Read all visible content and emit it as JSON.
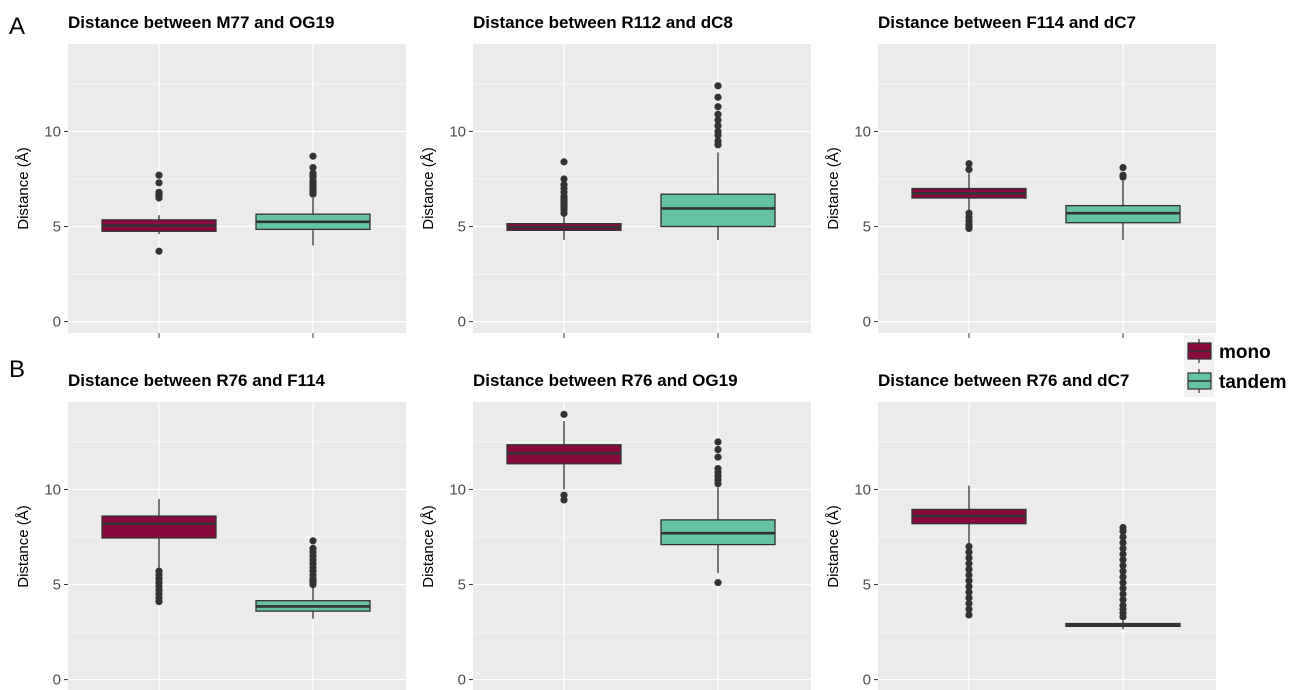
{
  "figure": {
    "row_labels": [
      "A",
      "B"
    ],
    "legend": {
      "entries": [
        {
          "label": "mono",
          "color": "#8B0A3E"
        },
        {
          "label": "tandem",
          "color": "#66C2A5"
        }
      ]
    }
  },
  "colors": {
    "panel_bg": "#EBEBEB",
    "gridline": "#FFFFFF",
    "box_line": "#333333",
    "tick_text": "#4D4D4D",
    "title_text": "#000000"
  },
  "chart_data": [
    {
      "type": "boxplot",
      "title": "Distance between M77 and OG19",
      "xlabel": "",
      "ylabel": "Distance (Å)",
      "ylim": [
        -0.6,
        14.6
      ],
      "yticks": [
        0,
        5,
        10
      ],
      "grid": true,
      "groups": [
        {
          "name": "mono",
          "min": 4.6,
          "q1": 4.75,
          "median": 5.05,
          "q3": 5.35,
          "max": 5.6,
          "outliers": [
            3.7,
            6.5,
            6.6,
            6.7,
            6.8,
            7.3,
            7.7
          ]
        },
        {
          "name": "tandem",
          "min": 4.0,
          "q1": 4.85,
          "median": 5.25,
          "q3": 5.65,
          "max": 6.5,
          "outliers": [
            6.7,
            6.8,
            6.9,
            7.0,
            7.1,
            7.2,
            7.3,
            7.4,
            7.6,
            7.7,
            7.8,
            8.1,
            8.7
          ]
        }
      ]
    },
    {
      "type": "boxplot",
      "title": "Distance between R112 and dC8",
      "xlabel": "",
      "ylabel": "Distance (Å)",
      "ylim": [
        -0.6,
        14.6
      ],
      "yticks": [
        0,
        5,
        10
      ],
      "grid": true,
      "groups": [
        {
          "name": "mono",
          "min": 4.3,
          "q1": 4.8,
          "median": 4.95,
          "q3": 5.15,
          "max": 5.6,
          "outliers": [
            5.7,
            5.9,
            6.0,
            6.1,
            6.2,
            6.3,
            6.4,
            6.5,
            6.6,
            6.8,
            7.0,
            7.2,
            7.5,
            8.4
          ]
        },
        {
          "name": "tandem",
          "min": 4.3,
          "q1": 5.0,
          "median": 5.95,
          "q3": 6.7,
          "max": 8.9,
          "outliers": [
            9.3,
            9.5,
            9.8,
            10.0,
            10.3,
            10.6,
            10.9,
            11.3,
            11.8,
            12.4
          ]
        }
      ]
    },
    {
      "type": "boxplot",
      "title": "Distance between F114 and dC7",
      "xlabel": "",
      "ylabel": "Distance (Å)",
      "ylim": [
        -0.6,
        14.6
      ],
      "yticks": [
        0,
        5,
        10
      ],
      "grid": true,
      "groups": [
        {
          "name": "mono",
          "min": 5.8,
          "q1": 6.5,
          "median": 6.75,
          "q3": 7.0,
          "max": 7.8,
          "outliers": [
            4.9,
            5.0,
            5.1,
            5.3,
            5.5,
            5.7,
            8.0,
            8.3
          ]
        },
        {
          "name": "tandem",
          "min": 4.3,
          "q1": 5.2,
          "median": 5.7,
          "q3": 6.1,
          "max": 7.4,
          "outliers": [
            7.6,
            7.7,
            8.1
          ]
        }
      ]
    },
    {
      "type": "boxplot",
      "title": "Distance between R76 and F114",
      "xlabel": "",
      "ylabel": "Distance (Å)",
      "ylim": [
        -0.6,
        14.6
      ],
      "yticks": [
        0,
        5,
        10
      ],
      "grid": true,
      "groups": [
        {
          "name": "mono",
          "min": 5.8,
          "q1": 7.45,
          "median": 8.2,
          "q3": 8.6,
          "max": 9.5,
          "outliers": [
            4.1,
            4.3,
            4.5,
            4.7,
            4.9,
            5.1,
            5.3,
            5.5,
            5.7
          ]
        },
        {
          "name": "tandem",
          "min": 3.2,
          "q1": 3.6,
          "median": 3.85,
          "q3": 4.15,
          "max": 4.9,
          "outliers": [
            5.0,
            5.1,
            5.2,
            5.3,
            5.5,
            5.7,
            5.9,
            6.1,
            6.3,
            6.5,
            6.7,
            6.9,
            7.3
          ]
        }
      ]
    },
    {
      "type": "boxplot",
      "title": "Distance between R76 and OG19",
      "xlabel": "",
      "ylabel": "Distance (Å)",
      "ylim": [
        -0.6,
        14.6
      ],
      "yticks": [
        0,
        5,
        10
      ],
      "grid": true,
      "groups": [
        {
          "name": "mono",
          "min": 10.0,
          "q1": 11.35,
          "median": 11.9,
          "q3": 12.35,
          "max": 13.6,
          "outliers": [
            9.45,
            9.7,
            13.95
          ]
        },
        {
          "name": "tandem",
          "min": 5.6,
          "q1": 7.1,
          "median": 7.7,
          "q3": 8.4,
          "max": 10.1,
          "outliers": [
            5.1,
            10.3,
            10.5,
            10.7,
            10.9,
            11.1,
            11.7,
            12.1,
            12.5
          ]
        }
      ]
    },
    {
      "type": "boxplot",
      "title": "Distance between R76 and dC7",
      "xlabel": "",
      "ylabel": "Distance (Å)",
      "ylim": [
        -0.6,
        14.6
      ],
      "yticks": [
        0,
        5,
        10
      ],
      "grid": true,
      "groups": [
        {
          "name": "mono",
          "min": 7.1,
          "q1": 8.2,
          "median": 8.6,
          "q3": 8.95,
          "max": 10.2,
          "outliers": [
            3.4,
            3.7,
            4.0,
            4.3,
            4.6,
            4.9,
            5.2,
            5.5,
            5.8,
            6.1,
            6.4,
            6.7,
            7.0
          ]
        },
        {
          "name": "tandem",
          "min": 2.65,
          "q1": 2.8,
          "median": 2.88,
          "q3": 2.95,
          "max": 3.1,
          "outliers": [
            3.3,
            3.5,
            3.7,
            3.9,
            4.2,
            4.5,
            4.8,
            5.1,
            5.4,
            5.7,
            6.0,
            6.3,
            6.6,
            6.9,
            7.2,
            7.5,
            7.8,
            8.0
          ]
        }
      ]
    }
  ]
}
